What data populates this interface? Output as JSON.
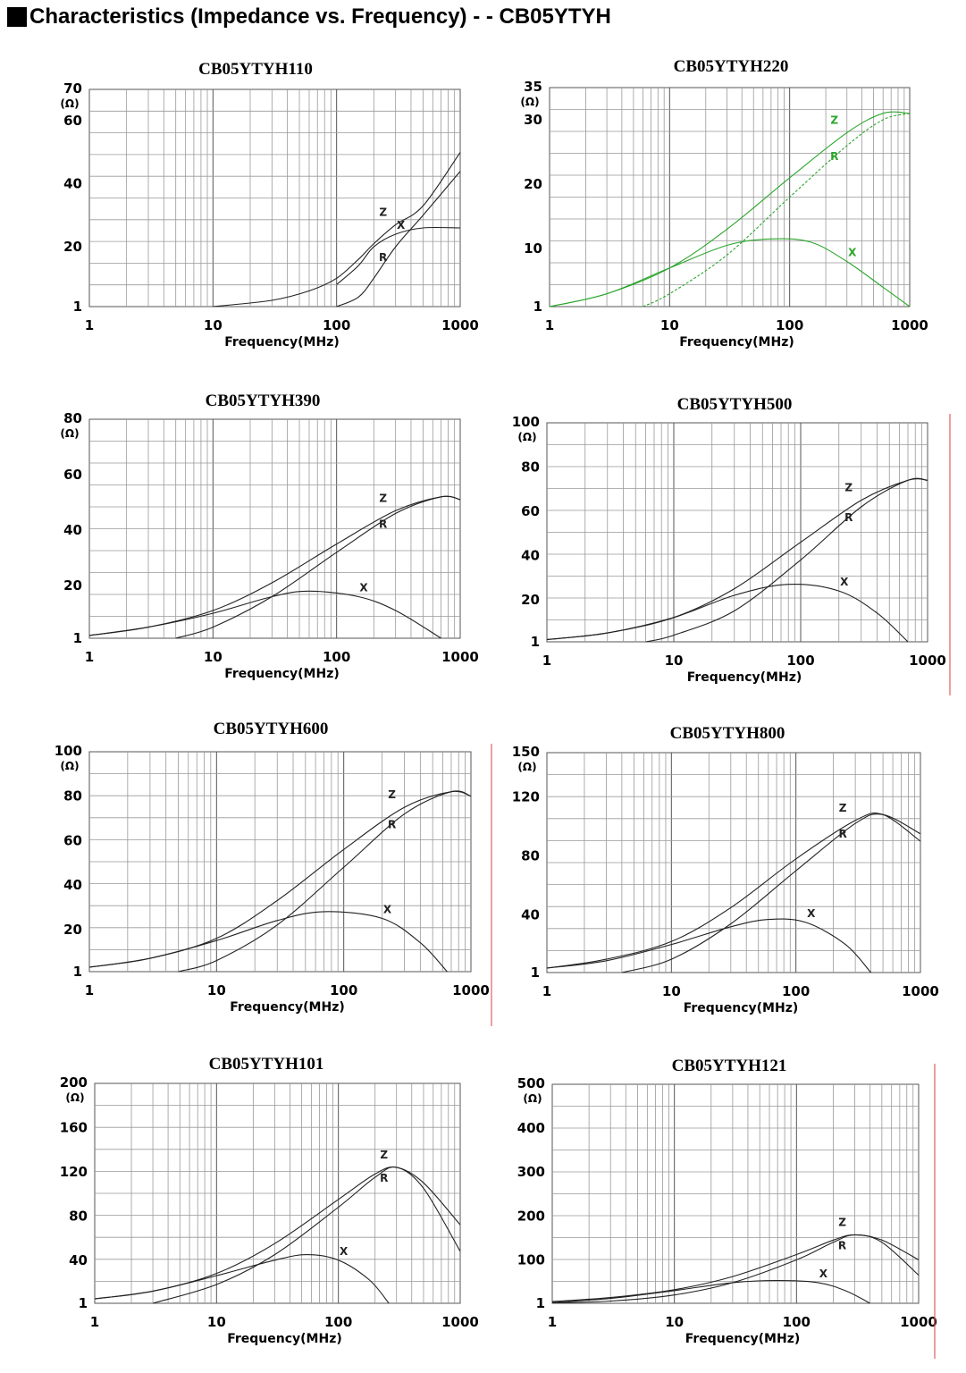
{
  "page": {
    "title": "Characteristics (Impedance vs. Frequency) - - CB05YTYH"
  },
  "chart_data": [
    {
      "type": "line",
      "title": "CB05YTYH110",
      "xlabel": "Frequency(MHz)",
      "ylabel": "(Ω)",
      "xscale": "log",
      "xlim": [
        1,
        1000
      ],
      "x_ticks": [
        "1",
        "10",
        "100",
        "1000"
      ],
      "y_ticks": [
        1,
        20,
        40,
        60,
        70
      ],
      "ylim": [
        1,
        70
      ],
      "color": "#222222",
      "series": [
        {
          "name": "Z",
          "points": [
            [
              10,
              1
            ],
            [
              30,
              3
            ],
            [
              60,
              6
            ],
            [
              100,
              10
            ],
            [
              150,
              16
            ],
            [
              200,
              21
            ],
            [
              300,
              27
            ],
            [
              500,
              33
            ],
            [
              1000,
              50
            ]
          ]
        },
        {
          "name": "R",
          "points": [
            [
              100,
              1
            ],
            [
              150,
              4
            ],
            [
              200,
              10
            ],
            [
              300,
              20
            ],
            [
              500,
              30
            ],
            [
              1000,
              44
            ]
          ]
        },
        {
          "name": "X",
          "points": [
            [
              100,
              8
            ],
            [
              150,
              14
            ],
            [
              200,
              20
            ],
            [
              300,
              24
            ],
            [
              500,
              26
            ],
            [
              1000,
              26
            ]
          ]
        }
      ]
    },
    {
      "type": "line",
      "title": "CB05YTYH220",
      "xlabel": "Frequency(MHz)",
      "ylabel": "(Ω)",
      "xscale": "log",
      "xlim": [
        1,
        1000
      ],
      "x_ticks": [
        "1",
        "10",
        "100",
        "1000"
      ],
      "y_ticks": [
        1,
        10,
        20,
        30,
        35
      ],
      "ylim": [
        1,
        35
      ],
      "color": "#2aa62a",
      "series": [
        {
          "name": "Z",
          "points": [
            [
              1,
              1
            ],
            [
              3,
              3
            ],
            [
              10,
              7
            ],
            [
              30,
              13
            ],
            [
              100,
              21
            ],
            [
              300,
              28
            ],
            [
              600,
              31
            ],
            [
              1000,
              31
            ]
          ]
        },
        {
          "name": "R",
          "points": [
            [
              6,
              1
            ],
            [
              10,
              3
            ],
            [
              30,
              9
            ],
            [
              100,
              18
            ],
            [
              300,
              26
            ],
            [
              600,
              30
            ],
            [
              1000,
              31
            ]
          ]
        },
        {
          "name": "X",
          "points": [
            [
              1,
              1
            ],
            [
              3,
              3
            ],
            [
              10,
              7
            ],
            [
              30,
              10.5
            ],
            [
              70,
              11.5
            ],
            [
              150,
              11
            ],
            [
              300,
              8
            ],
            [
              600,
              4
            ],
            [
              1000,
              1
            ]
          ]
        }
      ]
    },
    {
      "type": "line",
      "title": "CB05YTYH390",
      "xlabel": "Frequency(MHz)",
      "ylabel": "(Ω)",
      "xscale": "log",
      "xlim": [
        1,
        1000
      ],
      "x_ticks": [
        "1",
        "10",
        "100",
        "1000"
      ],
      "y_ticks": [
        1,
        20,
        40,
        60,
        80
      ],
      "ylim": [
        1,
        80
      ],
      "color": "#222222",
      "series": [
        {
          "name": "Z",
          "points": [
            [
              1,
              2
            ],
            [
              3,
              5
            ],
            [
              10,
              11
            ],
            [
              30,
              21
            ],
            [
              100,
              35
            ],
            [
              300,
              47
            ],
            [
              700,
              52
            ],
            [
              1000,
              51
            ]
          ]
        },
        {
          "name": "R",
          "points": [
            [
              5,
              1
            ],
            [
              10,
              5
            ],
            [
              30,
              16
            ],
            [
              100,
              32
            ],
            [
              300,
              46
            ],
            [
              700,
              52
            ],
            [
              1000,
              51
            ]
          ]
        },
        {
          "name": "X",
          "points": [
            [
              1,
              2
            ],
            [
              3,
              5
            ],
            [
              10,
              10
            ],
            [
              30,
              16
            ],
            [
              60,
              18
            ],
            [
              150,
              16
            ],
            [
              300,
              11
            ],
            [
              700,
              1
            ]
          ]
        }
      ]
    },
    {
      "type": "line",
      "title": "CB05YTYH500",
      "xlabel": "Frequency(MHz)",
      "ylabel": "(Ω)",
      "xscale": "log",
      "xlim": [
        1,
        1000
      ],
      "x_ticks": [
        "1",
        "10",
        "100",
        "1000"
      ],
      "y_ticks": [
        1,
        20,
        40,
        60,
        80,
        100
      ],
      "ylim": [
        1,
        100
      ],
      "color": "#222222",
      "series": [
        {
          "name": "Z",
          "points": [
            [
              1,
              2
            ],
            [
              3,
              5
            ],
            [
              10,
              12
            ],
            [
              30,
              25
            ],
            [
              100,
              46
            ],
            [
              300,
              65
            ],
            [
              700,
              74
            ],
            [
              1000,
              74
            ]
          ]
        },
        {
          "name": "R",
          "points": [
            [
              6,
              1
            ],
            [
              10,
              4
            ],
            [
              30,
              15
            ],
            [
              100,
              38
            ],
            [
              300,
              62
            ],
            [
              700,
              74
            ],
            [
              1000,
              74
            ]
          ]
        },
        {
          "name": "X",
          "points": [
            [
              1,
              2
            ],
            [
              3,
              5
            ],
            [
              10,
              12
            ],
            [
              30,
              22
            ],
            [
              80,
              27
            ],
            [
              200,
              24
            ],
            [
              400,
              14
            ],
            [
              700,
              1
            ]
          ]
        }
      ]
    },
    {
      "type": "line",
      "title": "CB05YTYH600",
      "xlabel": "Frequency(MHz)",
      "ylabel": "(Ω)",
      "xscale": "log",
      "xlim": [
        1,
        1000
      ],
      "x_ticks": [
        "1",
        "10",
        "100",
        "1000"
      ],
      "y_ticks": [
        1,
        20,
        40,
        60,
        80,
        100
      ],
      "ylim": [
        1,
        100
      ],
      "color": "#222222",
      "series": [
        {
          "name": "Z",
          "points": [
            [
              1,
              3
            ],
            [
              3,
              7
            ],
            [
              10,
              16
            ],
            [
              30,
              33
            ],
            [
              100,
              56
            ],
            [
              300,
              75
            ],
            [
              700,
              82
            ],
            [
              1000,
              80
            ]
          ]
        },
        {
          "name": "R",
          "points": [
            [
              5,
              1
            ],
            [
              10,
              6
            ],
            [
              30,
              22
            ],
            [
              100,
              48
            ],
            [
              300,
              72
            ],
            [
              700,
              82
            ],
            [
              1000,
              80
            ]
          ]
        },
        {
          "name": "X",
          "points": [
            [
              1,
              3
            ],
            [
              3,
              7
            ],
            [
              10,
              15
            ],
            [
              30,
              24
            ],
            [
              70,
              28
            ],
            [
              200,
              25
            ],
            [
              400,
              14
            ],
            [
              650,
              1
            ]
          ]
        }
      ]
    },
    {
      "type": "line",
      "title": "CB05YTYH800",
      "xlabel": "Frequency(MHz)",
      "ylabel": "(Ω)",
      "xscale": "log",
      "xlim": [
        1,
        1000
      ],
      "x_ticks": [
        "1",
        "10",
        "100",
        "1000"
      ],
      "y_ticks": [
        1,
        40,
        80,
        120,
        150
      ],
      "ylim": [
        1,
        150
      ],
      "color": "#222222",
      "series": [
        {
          "name": "Z",
          "points": [
            [
              1,
              4
            ],
            [
              3,
              10
            ],
            [
              10,
              22
            ],
            [
              30,
              45
            ],
            [
              100,
              78
            ],
            [
              300,
              104
            ],
            [
              500,
              108
            ],
            [
              1000,
              90
            ]
          ]
        },
        {
          "name": "R",
          "points": [
            [
              4,
              1
            ],
            [
              10,
              10
            ],
            [
              30,
              34
            ],
            [
              100,
              70
            ],
            [
              300,
              102
            ],
            [
              500,
              108
            ],
            [
              1000,
              95
            ]
          ]
        },
        {
          "name": "X",
          "points": [
            [
              1,
              4
            ],
            [
              3,
              9
            ],
            [
              10,
              20
            ],
            [
              30,
              32
            ],
            [
              60,
              37
            ],
            [
              120,
              35
            ],
            [
              250,
              20
            ],
            [
              400,
              1
            ]
          ]
        }
      ]
    },
    {
      "type": "line",
      "title": "CB05YTYH101",
      "xlabel": "Frequency(MHz)",
      "ylabel": "(Ω)",
      "xscale": "log",
      "xlim": [
        1,
        1000
      ],
      "x_ticks": [
        "1",
        "10",
        "100",
        "1000"
      ],
      "y_ticks": [
        1,
        40,
        80,
        120,
        160,
        200
      ],
      "ylim": [
        1,
        200
      ],
      "color": "#222222",
      "series": [
        {
          "name": "Z",
          "points": [
            [
              1,
              5
            ],
            [
              3,
              12
            ],
            [
              10,
              28
            ],
            [
              30,
              55
            ],
            [
              100,
              95
            ],
            [
              200,
              118
            ],
            [
              300,
              124
            ],
            [
              500,
              110
            ],
            [
              1000,
              72
            ]
          ]
        },
        {
          "name": "R",
          "points": [
            [
              3,
              1
            ],
            [
              10,
              18
            ],
            [
              30,
              45
            ],
            [
              100,
              88
            ],
            [
              200,
              115
            ],
            [
              300,
              124
            ],
            [
              500,
              105
            ],
            [
              1000,
              48
            ]
          ]
        },
        {
          "name": "X",
          "points": [
            [
              1,
              5
            ],
            [
              3,
              12
            ],
            [
              10,
              26
            ],
            [
              30,
              40
            ],
            [
              55,
              45
            ],
            [
              100,
              40
            ],
            [
              180,
              22
            ],
            [
              260,
              1
            ]
          ]
        }
      ]
    },
    {
      "type": "line",
      "title": "CB05YTYH121",
      "xlabel": "Frequency(MHz)",
      "ylabel": "(Ω)",
      "xscale": "log",
      "xlim": [
        1,
        1000
      ],
      "x_ticks": [
        "1",
        "10",
        "100",
        "1000"
      ],
      "y_ticks": [
        1,
        100,
        200,
        300,
        400,
        500
      ],
      "ylim": [
        1,
        500
      ],
      "color": "#222222",
      "series": [
        {
          "name": "Z",
          "points": [
            [
              1,
              5
            ],
            [
              3,
              14
            ],
            [
              10,
              32
            ],
            [
              30,
              62
            ],
            [
              100,
              112
            ],
            [
              200,
              145
            ],
            [
              300,
              157
            ],
            [
              500,
              145
            ],
            [
              1000,
              100
            ]
          ]
        },
        {
          "name": "R",
          "points": [
            [
              1,
              2
            ],
            [
              3,
              6
            ],
            [
              10,
              20
            ],
            [
              30,
              48
            ],
            [
              100,
              100
            ],
            [
              200,
              140
            ],
            [
              300,
              157
            ],
            [
              500,
              140
            ],
            [
              1000,
              65
            ]
          ]
        },
        {
          "name": "X",
          "points": [
            [
              1,
              3
            ],
            [
              3,
              12
            ],
            [
              10,
              30
            ],
            [
              30,
              48
            ],
            [
              70,
              53
            ],
            [
              150,
              48
            ],
            [
              250,
              30
            ],
            [
              400,
              1
            ]
          ]
        }
      ]
    }
  ]
}
